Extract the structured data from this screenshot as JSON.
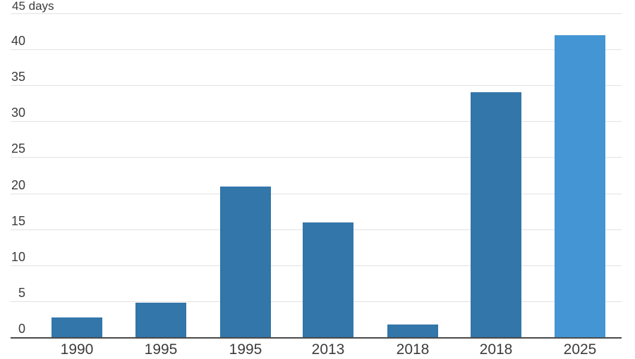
{
  "chart_data": {
    "type": "bar",
    "title": "",
    "unit_label": "45 days",
    "categories": [
      "1990",
      "1995",
      "1995",
      "2013",
      "2018",
      "2018",
      "2025"
    ],
    "values": [
      2.7,
      4.8,
      20.9,
      15.9,
      1.8,
      34,
      42
    ],
    "colors": [
      "#3276aa",
      "#3276aa",
      "#3276aa",
      "#3276aa",
      "#3276aa",
      "#3276aa",
      "#4396d3"
    ],
    "bar_color_default": "#3276aa",
    "bar_color_highlight": "#4396d3",
    "xlabel": "",
    "ylabel": "days",
    "ylim": [
      0,
      45
    ],
    "yticks": [
      0,
      5,
      10,
      15,
      20,
      25,
      30,
      35,
      40
    ],
    "ytick_interval": 5,
    "grid": true,
    "legend_position": "none",
    "gridline_color": "#e2e2e2",
    "baseline_color": "#4a4a4a",
    "text_color": "#3c3c3c"
  }
}
